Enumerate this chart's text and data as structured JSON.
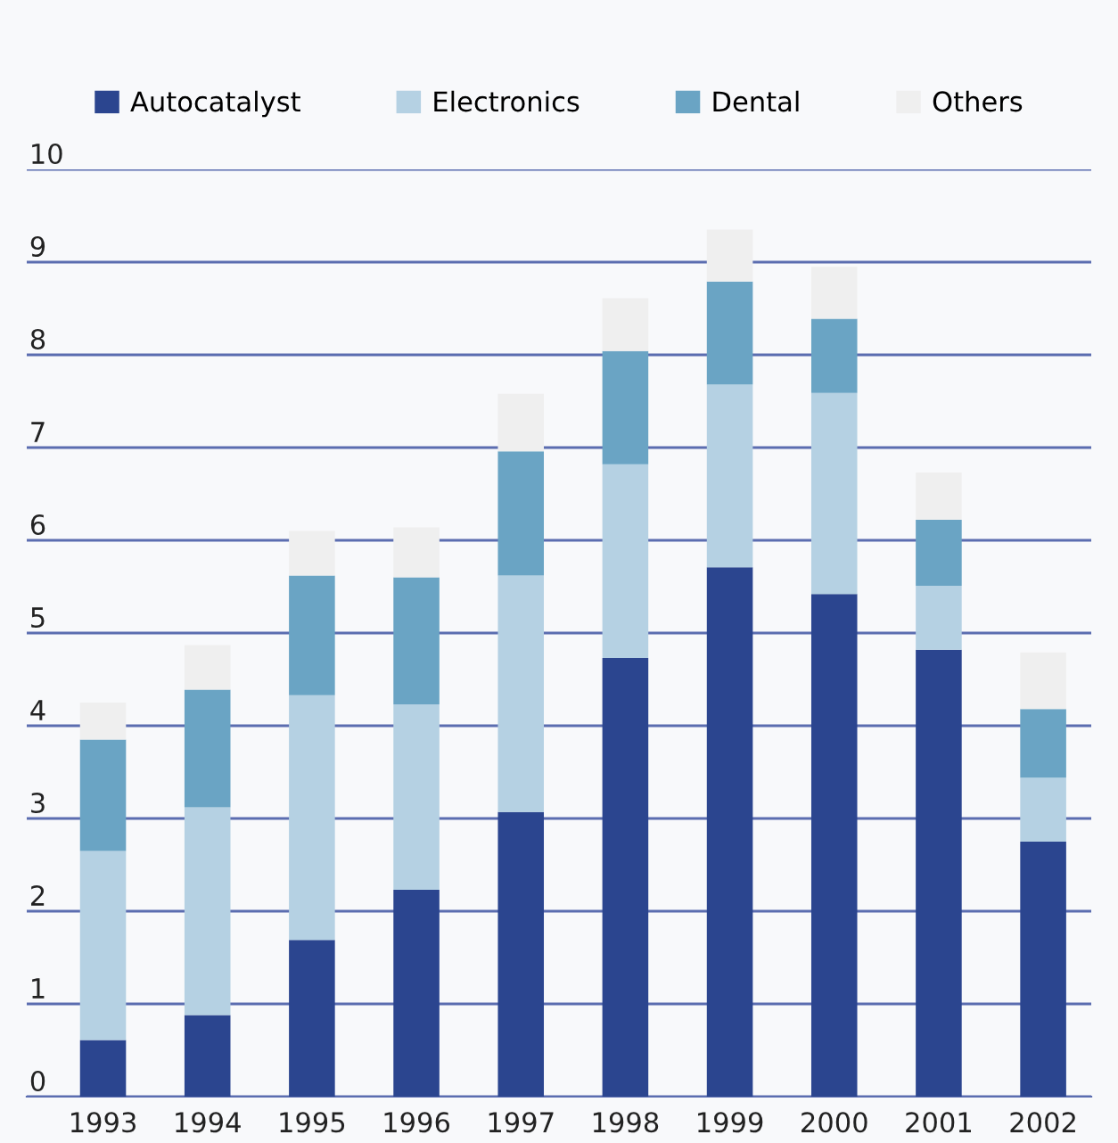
{
  "chart_data": {
    "type": "bar",
    "stacked": true,
    "categories": [
      "1993",
      "1994",
      "1995",
      "1996",
      "1997",
      "1998",
      "1999",
      "2000",
      "2001",
      "2002"
    ],
    "series": [
      {
        "name": "Autocatalyst",
        "color": "#2b458f",
        "values": [
          0.61,
          0.88,
          1.69,
          2.23,
          3.07,
          4.73,
          5.71,
          5.42,
          4.82,
          2.75
        ]
      },
      {
        "name": "Electronics",
        "color": "#b5d1e3",
        "values": [
          2.04,
          2.24,
          2.64,
          2.0,
          2.55,
          2.09,
          1.97,
          2.17,
          0.69,
          0.69
        ]
      },
      {
        "name": "Dental",
        "color": "#6aa4c4",
        "values": [
          1.2,
          1.27,
          1.29,
          1.37,
          1.34,
          1.22,
          1.11,
          0.8,
          0.71,
          0.74
        ]
      },
      {
        "name": "Others",
        "color": "#efefef",
        "values": [
          0.4,
          0.48,
          0.48,
          0.54,
          0.62,
          0.57,
          0.56,
          0.56,
          0.51,
          0.61
        ]
      }
    ],
    "ylim": [
      0,
      10
    ],
    "yticks": [
      0,
      1,
      2,
      3,
      4,
      5,
      6,
      7,
      8,
      9,
      10
    ],
    "grid": "y",
    "legend": "top"
  }
}
